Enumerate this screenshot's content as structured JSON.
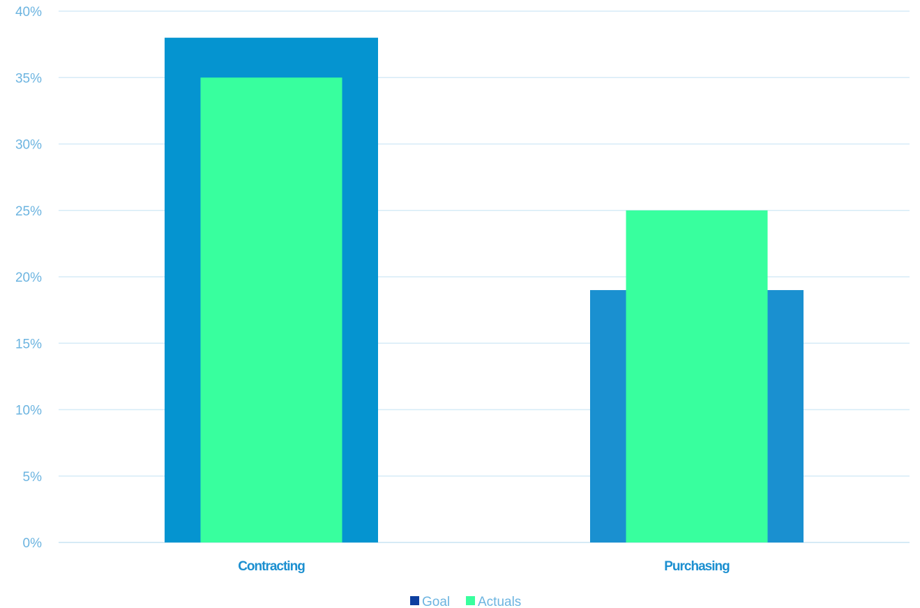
{
  "chart_data": {
    "type": "bar",
    "categories": [
      "Contracting",
      "Purchasing"
    ],
    "series": [
      {
        "name": "Goal",
        "values": [
          38,
          19
        ],
        "color": "#0594d0",
        "legend_color": "#0d3fa0"
      },
      {
        "name": "Actuals",
        "values": [
          35,
          25
        ],
        "color": "#38ff9e",
        "legend_color": "#38ff9e"
      }
    ],
    "ylim": [
      0,
      40
    ],
    "yticks": [
      0,
      5,
      10,
      15,
      20,
      25,
      30,
      35,
      40
    ],
    "ytick_labels": [
      "0%",
      "5%",
      "10%",
      "15%",
      "20%",
      "25%",
      "30%",
      "35%",
      "40%"
    ],
    "title": "",
    "xlabel": "",
    "ylabel": "",
    "grid": true,
    "legend_position": "bottom"
  }
}
